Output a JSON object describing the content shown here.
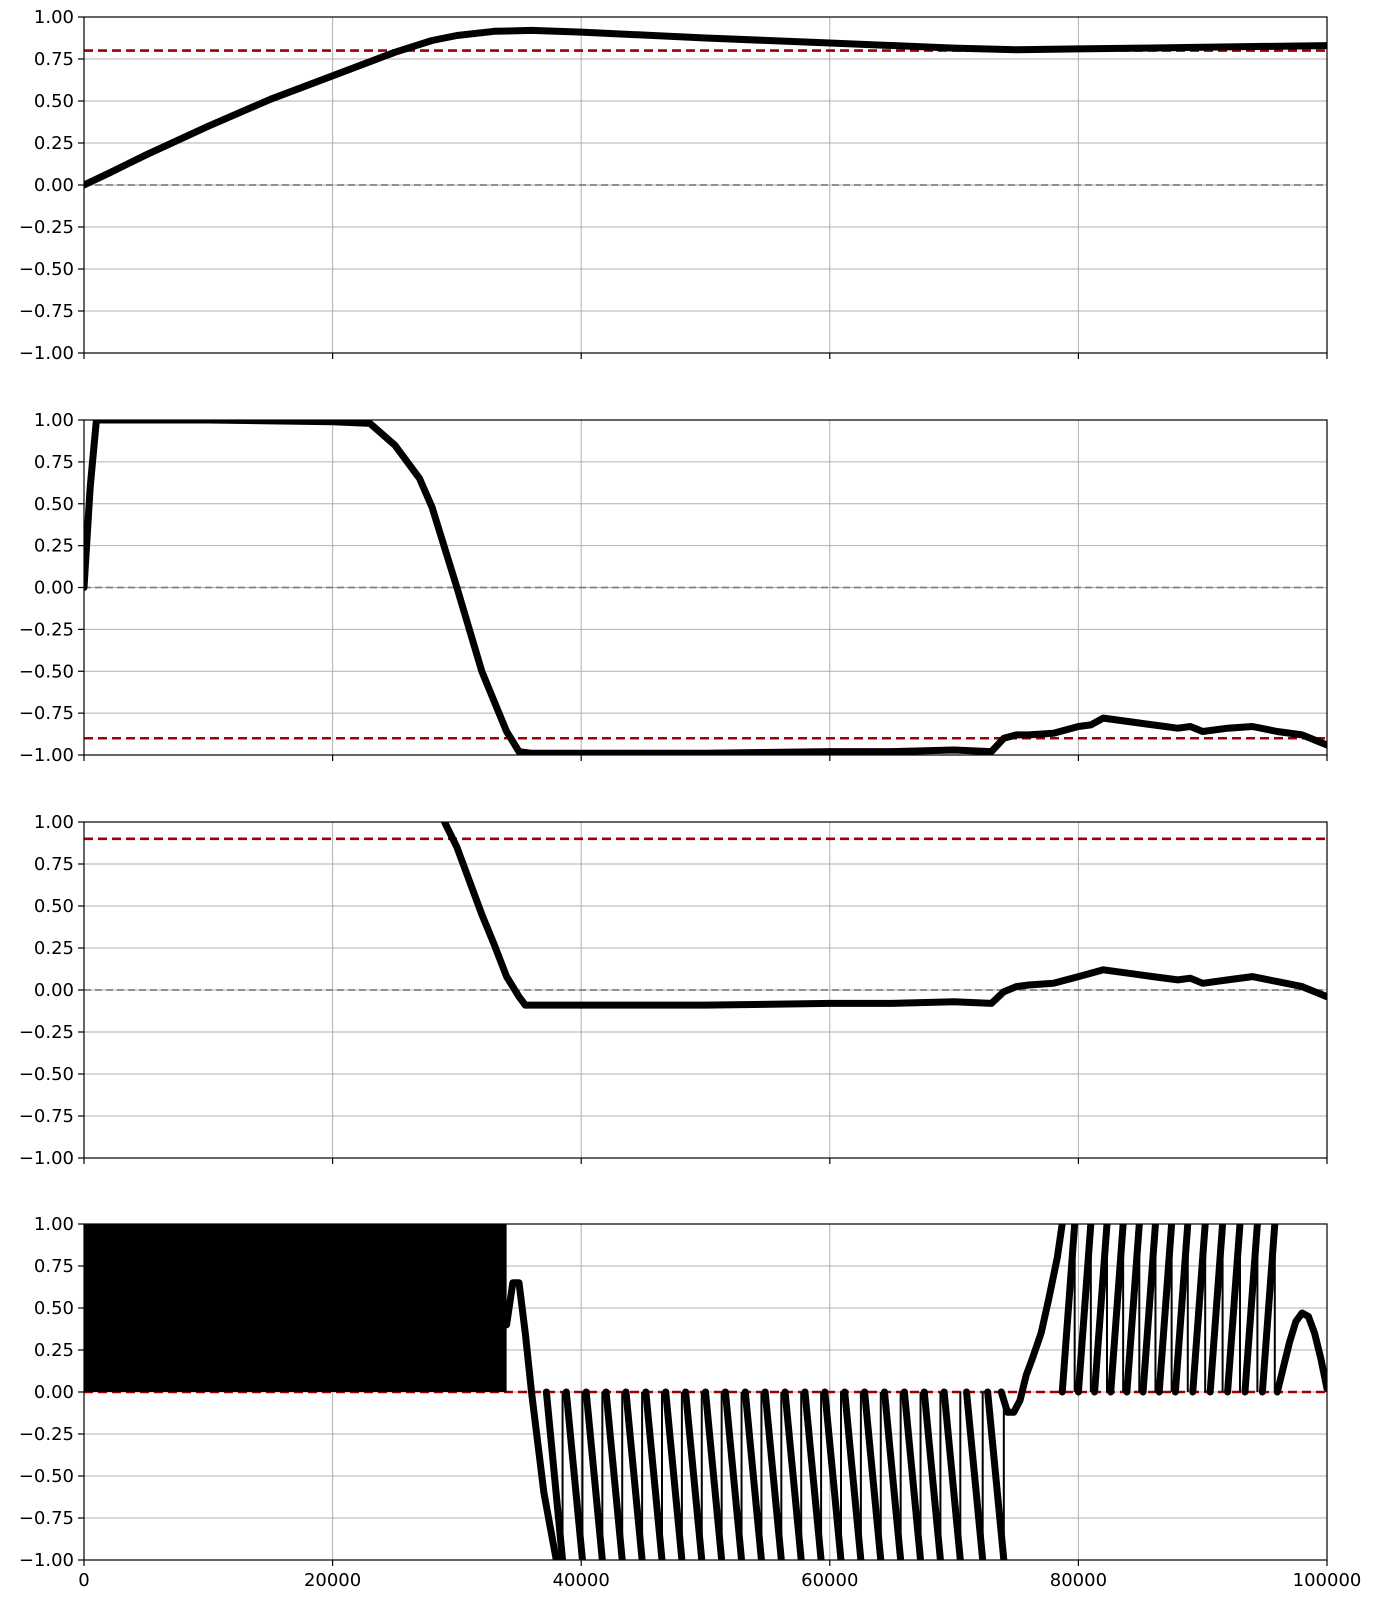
{
  "chart_data": [
    {
      "type": "line",
      "title": "",
      "xlabel": "",
      "ylabel": "",
      "xlim": [
        0,
        100000
      ],
      "ylim": [
        -1,
        1
      ],
      "xticks": [
        0,
        20000,
        40000,
        60000,
        80000,
        100000
      ],
      "xtick_labels": [
        "0",
        "20000",
        "40000",
        "60000",
        "80000",
        "100000"
      ],
      "yticks": [
        -1,
        -0.75,
        -0.5,
        -0.25,
        0,
        0.25,
        0.5,
        0.75,
        1
      ],
      "ytick_labels": [
        "−1.00",
        "−0.75",
        "−0.50",
        "−0.25",
        "0.00",
        "0.25",
        "0.50",
        "0.75",
        "1.00"
      ],
      "grid": true,
      "show_xtick_labels": false,
      "reference_lines": [
        {
          "y": 0.0,
          "color": "#808080",
          "style": "dashed"
        },
        {
          "y": 0.8,
          "color": "#a00000",
          "style": "dashed"
        }
      ],
      "series": [
        {
          "color": "#000000",
          "x": [
            0,
            2000,
            5000,
            10000,
            15000,
            20000,
            25000,
            28000,
            30000,
            33000,
            36000,
            40000,
            50000,
            60000,
            70000,
            75000,
            80000,
            85000,
            90000,
            95000,
            100000
          ],
          "y": [
            0.0,
            0.07,
            0.18,
            0.35,
            0.51,
            0.65,
            0.79,
            0.86,
            0.89,
            0.915,
            0.92,
            0.91,
            0.875,
            0.845,
            0.815,
            0.805,
            0.81,
            0.815,
            0.82,
            0.825,
            0.83
          ]
        }
      ]
    },
    {
      "type": "line",
      "title": "",
      "xlabel": "",
      "ylabel": "",
      "xlim": [
        0,
        100000
      ],
      "ylim": [
        -1,
        1
      ],
      "xticks": [
        0,
        20000,
        40000,
        60000,
        80000,
        100000
      ],
      "xtick_labels": [
        "0",
        "20000",
        "40000",
        "60000",
        "80000",
        "100000"
      ],
      "yticks": [
        -1,
        -0.75,
        -0.5,
        -0.25,
        0,
        0.25,
        0.5,
        0.75,
        1
      ],
      "ytick_labels": [
        "−1.00",
        "−0.75",
        "−0.50",
        "−0.25",
        "0.00",
        "0.25",
        "0.50",
        "0.75",
        "1.00"
      ],
      "grid": true,
      "show_xtick_labels": false,
      "reference_lines": [
        {
          "y": 0.0,
          "color": "#808080",
          "style": "dashed"
        },
        {
          "y": -0.9,
          "color": "#a00000",
          "style": "dashed"
        }
      ],
      "series": [
        {
          "color": "#000000",
          "x": [
            0,
            500,
            1000,
            5000,
            10000,
            20000,
            23000,
            25000,
            27000,
            28000,
            30000,
            32000,
            33000,
            34000,
            35000,
            36000,
            40000,
            50000,
            60000,
            65000,
            70000,
            73000,
            74000,
            75000,
            76000,
            78000,
            80000,
            81000,
            82000,
            84000,
            86000,
            88000,
            89000,
            90000,
            92000,
            94000,
            96000,
            98000,
            100000
          ],
          "y": [
            0.0,
            0.6,
            1.0,
            1.0,
            1.0,
            0.99,
            0.98,
            0.85,
            0.65,
            0.48,
            0.0,
            -0.5,
            -0.68,
            -0.86,
            -0.98,
            -0.99,
            -0.99,
            -0.99,
            -0.98,
            -0.98,
            -0.97,
            -0.98,
            -0.9,
            -0.88,
            -0.88,
            -0.87,
            -0.83,
            -0.82,
            -0.78,
            -0.8,
            -0.82,
            -0.84,
            -0.83,
            -0.86,
            -0.84,
            -0.83,
            -0.86,
            -0.88,
            -0.94
          ]
        }
      ]
    },
    {
      "type": "line",
      "title": "",
      "xlabel": "",
      "ylabel": "",
      "xlim": [
        0,
        100000
      ],
      "ylim": [
        -1,
        1
      ],
      "xticks": [
        0,
        20000,
        40000,
        60000,
        80000,
        100000
      ],
      "xtick_labels": [
        "0",
        "20000",
        "40000",
        "60000",
        "80000",
        "100000"
      ],
      "yticks": [
        -1,
        -0.75,
        -0.5,
        -0.25,
        0,
        0.25,
        0.5,
        0.75,
        1
      ],
      "ytick_labels": [
        "−1.00",
        "−0.75",
        "−0.50",
        "−0.25",
        "0.00",
        "0.25",
        "0.50",
        "0.75",
        "1.00"
      ],
      "grid": true,
      "show_xtick_labels": false,
      "reference_lines": [
        {
          "y": 0.0,
          "color": "#808080",
          "style": "dashed"
        },
        {
          "y": 0.9,
          "color": "#a00000",
          "style": "dashed"
        }
      ],
      "series": [
        {
          "color": "#000000",
          "x": [
            29000,
            30000,
            32000,
            33000,
            34000,
            35000,
            35500,
            40000,
            50000,
            60000,
            65000,
            70000,
            73000,
            74000,
            75000,
            76000,
            78000,
            80000,
            81000,
            82000,
            84000,
            86000,
            88000,
            89000,
            90000,
            92000,
            94000,
            96000,
            98000,
            100000
          ],
          "y": [
            1.0,
            0.85,
            0.45,
            0.27,
            0.08,
            -0.04,
            -0.09,
            -0.09,
            -0.09,
            -0.08,
            -0.08,
            -0.07,
            -0.08,
            -0.01,
            0.02,
            0.03,
            0.04,
            0.08,
            0.1,
            0.12,
            0.1,
            0.08,
            0.06,
            0.07,
            0.04,
            0.06,
            0.08,
            0.05,
            0.02,
            -0.04
          ]
        }
      ]
    },
    {
      "type": "line",
      "title": "",
      "xlabel": "",
      "ylabel": "",
      "xlim": [
        0,
        100000
      ],
      "ylim": [
        -1,
        1
      ],
      "xticks": [
        0,
        20000,
        40000,
        60000,
        80000,
        100000
      ],
      "xtick_labels": [
        "0",
        "20000",
        "40000",
        "60000",
        "80000",
        "100000"
      ],
      "yticks": [
        -1,
        -0.75,
        -0.5,
        -0.25,
        0,
        0.25,
        0.5,
        0.75,
        1
      ],
      "ytick_labels": [
        "−1.00",
        "−0.75",
        "−0.50",
        "−0.25",
        "0.00",
        "0.25",
        "0.50",
        "0.75",
        "1.00"
      ],
      "grid": true,
      "show_xtick_labels": true,
      "reference_lines": [
        {
          "y": 0.0,
          "color": "#a00000",
          "style": "dashed"
        }
      ],
      "dense_oscillation": {
        "x_range": [
          0,
          34000
        ],
        "y_range": [
          0,
          1
        ]
      },
      "series": [
        {
          "color": "#000000",
          "x": [
            34000,
            34500,
            35000,
            35500,
            36000,
            37000,
            38000
          ],
          "y": [
            0.4,
            0.65,
            0.65,
            0.35,
            0.0,
            -0.6,
            -1.0
          ]
        },
        {
          "color": "#000000",
          "sawtooth_down_starts": [
            37200,
            38800,
            40400,
            42000,
            43600,
            45200,
            46800,
            48400,
            50000,
            51600,
            53200,
            54800,
            56400,
            58000,
            59600,
            61200,
            62800,
            64400,
            66000,
            67600,
            69200,
            71000,
            72700
          ],
          "segment_from_y": 0.0,
          "segment_to_y": -1.0,
          "segment_width": 1300
        },
        {
          "color": "#000000",
          "x": [
            73800,
            74300,
            74800,
            75300,
            75800,
            76300,
            77000,
            77600,
            78300,
            78700
          ],
          "y": [
            0.0,
            -0.12,
            -0.12,
            -0.05,
            0.1,
            0.2,
            0.35,
            0.55,
            0.8,
            1.0
          ]
        },
        {
          "color": "#000000",
          "sawtooth_up_starts": [
            78700,
            80000,
            81300,
            82600,
            83900,
            85200,
            86500,
            87800,
            89200,
            90600,
            92000,
            93400,
            94800
          ],
          "segment_from_y": 0.0,
          "segment_to_y": 1.0,
          "segment_width": 1000
        },
        {
          "color": "#000000",
          "x": [
            96000,
            96500,
            97000,
            97500,
            98000,
            98500,
            99000,
            99500,
            100000
          ],
          "y": [
            0.0,
            0.15,
            0.3,
            0.42,
            0.47,
            0.45,
            0.35,
            0.2,
            0.02
          ]
        }
      ]
    }
  ]
}
